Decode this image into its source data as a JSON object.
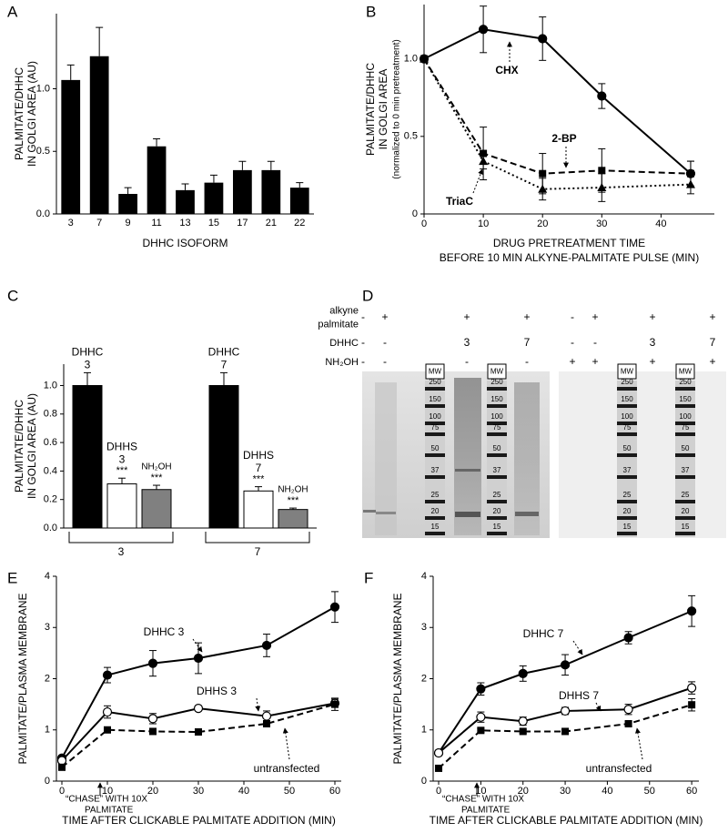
{
  "chart_data": [
    {
      "type": "bar",
      "panel": "A",
      "ylabel": [
        "PALMITATE/DHHC",
        "IN GOLGI AREA (AU)"
      ],
      "xlabel": [
        "DHHC ISOFORM"
      ],
      "categories": [
        "3",
        "7",
        "9",
        "11",
        "13",
        "15",
        "17",
        "21",
        "22"
      ],
      "values": [
        1.07,
        1.26,
        0.16,
        0.54,
        0.19,
        0.25,
        0.35,
        0.35,
        0.21
      ],
      "errors": [
        0.12,
        0.23,
        0.05,
        0.06,
        0.05,
        0.06,
        0.07,
        0.07,
        0.04
      ],
      "color": "#000000",
      "ylim": [
        0,
        1.6
      ],
      "yticks": [
        {
          "value": 0,
          "label": "0.0"
        },
        0.5,
        {
          "value": 1,
          "label": "1.0"
        }
      ]
    },
    {
      "type": "line",
      "panel": "B",
      "ylabel": [
        "PALMITATE/DHHC",
        "IN GOLGI AREA",
        "(normalized to 0 min pretreatment)"
      ],
      "xlabel": [
        "DRUG PRETREATMENT TIME",
        "BEFORE 10 MIN ALKYNE-PALMITATE PULSE (MIN)"
      ],
      "x": [
        0,
        10,
        20,
        30,
        45
      ],
      "series": [
        {
          "name": "CHX",
          "color": "#000000",
          "marker": "circle",
          "line": "solid",
          "values": [
            1,
            1.19,
            1.13,
            0.76,
            0.26
          ],
          "errors": [
            0,
            0.15,
            0.14,
            0.08,
            0.08
          ]
        },
        {
          "name": "2-BP",
          "color": "#000000",
          "marker": "square",
          "line": "dashed",
          "values": [
            1,
            0.39,
            0.26,
            0.28,
            0.26
          ],
          "errors": [
            0,
            0.17,
            0.13,
            0.14,
            0.08
          ]
        },
        {
          "name": "TriaC",
          "color": "#000000",
          "marker": "triangle",
          "line": "dotted",
          "values": [
            1,
            0.34,
            0.16,
            0.17,
            0.19
          ],
          "errors": [
            0,
            0.05,
            0.07,
            0.09,
            0.06
          ]
        }
      ],
      "xlim": [
        0,
        49
      ],
      "xticks": [
        0,
        10,
        20,
        30,
        40
      ],
      "ylim": [
        0,
        1.35
      ],
      "yticks": [
        0,
        0.5,
        {
          "value": 1,
          "label": "1.0"
        }
      ]
    },
    {
      "type": "grouped_bar",
      "panel": "C",
      "ylabel": [
        "PALMITATE/DHHC",
        "IN GOLGI AREA (AU)"
      ],
      "categories": [
        "3",
        "7"
      ],
      "series": [
        {
          "name": "DHHC",
          "color": "#000000",
          "label_category": true,
          "values": [
            1,
            1
          ],
          "errors": [
            0.09,
            0.09
          ]
        },
        {
          "name": "DHHS",
          "color": "#ffffff",
          "label_category": true,
          "values": [
            0.31,
            0.26
          ],
          "errors": [
            0.04,
            0.03
          ],
          "significance": [
            "***",
            "***"
          ]
        },
        {
          "name": "NH₂OH",
          "color": "#808080",
          "label_category": false,
          "values": [
            0.27,
            0.13
          ],
          "errors": [
            0.03,
            0.01
          ],
          "significance": [
            "***",
            "***"
          ]
        }
      ],
      "ylim": [
        0,
        1.15
      ],
      "yticks": [
        {
          "value": 0,
          "label": "0.0"
        },
        0.2,
        0.4,
        0.6,
        0.8,
        {
          "value": 1,
          "label": "1.0"
        }
      ]
    },
    {
      "type": "line",
      "panel": "E",
      "ylabel": [
        "PALMITATE/PLASMA MEMBRANE"
      ],
      "xlabel": [
        "TIME AFTER CLICKABLE PALMITATE ADDITION (MIN)"
      ],
      "x": [
        0,
        10,
        20,
        30,
        45,
        60
      ],
      "series": [
        {
          "name": "DHHC 3",
          "color": "#000000",
          "marker": "circle",
          "line": "solid",
          "values": [
            0.45,
            2.07,
            2.3,
            2.4,
            2.65,
            3.4
          ],
          "errors": [
            0.05,
            0.15,
            0.25,
            0.3,
            0.22,
            0.3
          ]
        },
        {
          "name": "DHHS 3",
          "color": "#000000",
          "marker": "open_circle",
          "line": "solid",
          "values": [
            0.4,
            1.35,
            1.22,
            1.42,
            1.27,
            1.52
          ],
          "errors": [
            0.05,
            0.12,
            0.1,
            0.04,
            0.1,
            0.08
          ]
        },
        {
          "name": "untransfected",
          "color": "#000000",
          "marker": "square",
          "line": "dashed",
          "values": [
            0.27,
            1,
            0.97,
            0.96,
            1.12,
            1.5
          ],
          "errors": [
            0.03,
            0.04,
            0.04,
            0.04,
            0.05,
            0.12
          ]
        }
      ],
      "annotations": [
        "“CHASE” WITH 10X",
        "PALMITATE"
      ],
      "xlim": [
        -1.2,
        61.4
      ],
      "xticks": [
        0,
        10,
        20,
        30,
        40,
        50,
        60
      ],
      "ylim": [
        0,
        4
      ],
      "yticks": [
        0,
        1,
        2,
        3,
        4
      ]
    },
    {
      "type": "line",
      "panel": "F",
      "ylabel": [
        "PALMITATE/PLASMA MEMBRANE"
      ],
      "xlabel": [
        "TIME AFTER CLICKABLE PALMITATE ADDITION (MIN)"
      ],
      "x": [
        0,
        10,
        20,
        30,
        45,
        60
      ],
      "series": [
        {
          "name": "DHHC 7",
          "color": "#000000",
          "marker": "circle",
          "line": "solid",
          "values": [
            0.55,
            1.8,
            2.1,
            2.27,
            2.8,
            3.32
          ],
          "errors": [
            0.05,
            0.12,
            0.15,
            0.2,
            0.12,
            0.3
          ]
        },
        {
          "name": "DHHS 7",
          "color": "#000000",
          "marker": "open_circle",
          "line": "solid",
          "values": [
            0.55,
            1.25,
            1.17,
            1.37,
            1.4,
            1.82
          ],
          "errors": [
            0.05,
            0.1,
            0.08,
            0.07,
            0.1,
            0.12
          ]
        },
        {
          "name": "untransfected",
          "color": "#000000",
          "marker": "square",
          "line": "dashed",
          "values": [
            0.25,
            0.99,
            0.97,
            0.97,
            1.12,
            1.49
          ],
          "errors": [
            0.03,
            0.04,
            0.04,
            0.04,
            0.05,
            0.12
          ]
        }
      ],
      "annotations": [
        "“CHASE” WITH 10X",
        "PALMITATE"
      ],
      "xlim": [
        -1.3,
        61.7
      ],
      "xticks": [
        0,
        10,
        20,
        30,
        40,
        50,
        60
      ],
      "ylim": [
        0,
        4
      ],
      "yticks": [
        0,
        1,
        2,
        3,
        4
      ]
    }
  ],
  "gel": {
    "panel": "D",
    "rows": [
      {
        "label": [
          "alkyne",
          "palmitate"
        ],
        "cells": [
          "-",
          "+",
          "+",
          "+",
          "-",
          "+",
          "+",
          "+"
        ]
      },
      {
        "label": [
          "DHHC"
        ],
        "cells": [
          "-",
          "-",
          "3",
          "7",
          "-",
          "-",
          "3",
          "7"
        ]
      },
      {
        "label": [
          "NH₂OH"
        ],
        "cells": [
          "-",
          "-",
          "-",
          "-",
          "+",
          "+",
          "+",
          "+"
        ]
      }
    ],
    "ladder_label": "MW",
    "ladder": [
      "250",
      "150",
      "100",
      "75",
      "50",
      "37",
      "25",
      "20",
      "15"
    ]
  }
}
